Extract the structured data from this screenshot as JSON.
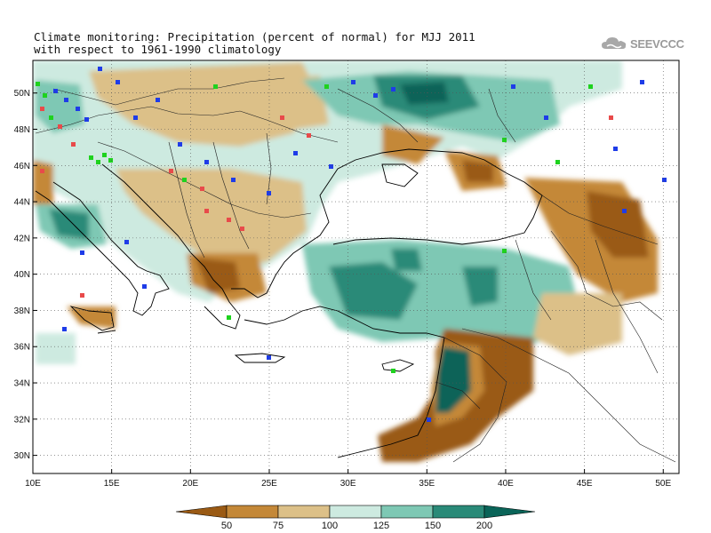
{
  "title": {
    "line1": "Climate monitoring: Precipitation (percent of normal) for MJJ 2011",
    "line2": "with respect to 1961-1990 climatology"
  },
  "logo": {
    "text": "SEEVCCC",
    "icon": "cloud-icon"
  },
  "map": {
    "lon_range": [
      10,
      51
    ],
    "lat_range": [
      29,
      51.8
    ],
    "lon_ticks": [
      10,
      15,
      20,
      25,
      30,
      35,
      40,
      45,
      50
    ],
    "lon_tick_labels": [
      "10E",
      "15E",
      "20E",
      "25E",
      "30E",
      "35E",
      "40E",
      "45E",
      "50E"
    ],
    "lat_ticks": [
      30,
      32,
      34,
      36,
      38,
      40,
      42,
      44,
      46,
      48,
      50
    ],
    "lat_tick_labels": [
      "30N",
      "32N",
      "34N",
      "36N",
      "38N",
      "40N",
      "42N",
      "44N",
      "46N",
      "48N",
      "50N"
    ],
    "grid": "dotted"
  },
  "legend": {
    "labels": [
      "50",
      "75",
      "100",
      "125",
      "150",
      "200"
    ],
    "colors": [
      "#9a5a14",
      "#c48838",
      "#dcc088",
      "#cdeae0",
      "#7ec8b4",
      "#2a8a78",
      "#0a6458"
    ]
  },
  "station_colors": {
    "blue": "#1e3ce8",
    "green": "#1ed21e",
    "red": "#e84a4a"
  }
}
